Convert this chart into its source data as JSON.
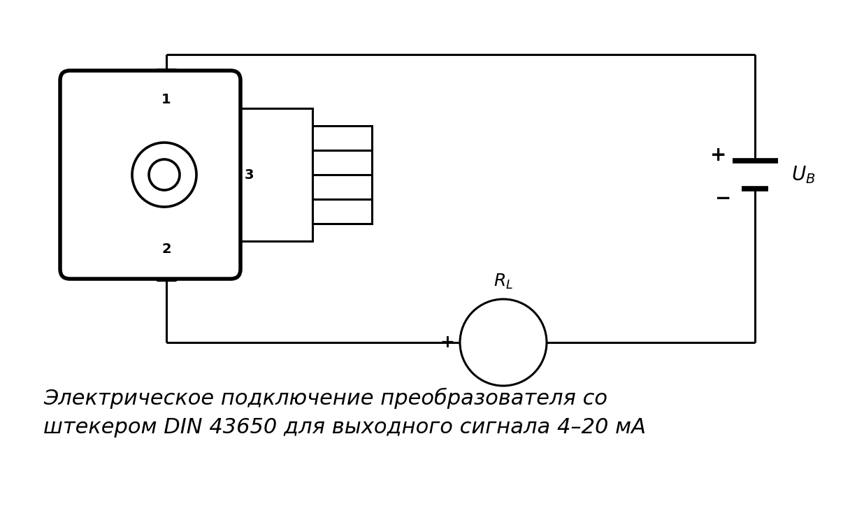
{
  "background_color": "#ffffff",
  "line_color": "#000000",
  "line_width": 2.2,
  "title_text": "Электрическое подключение преобразователя со\nштекером DIN 43650 для выходного сигнала 4–20 мА",
  "title_fontsize": 22,
  "title_style": "italic"
}
